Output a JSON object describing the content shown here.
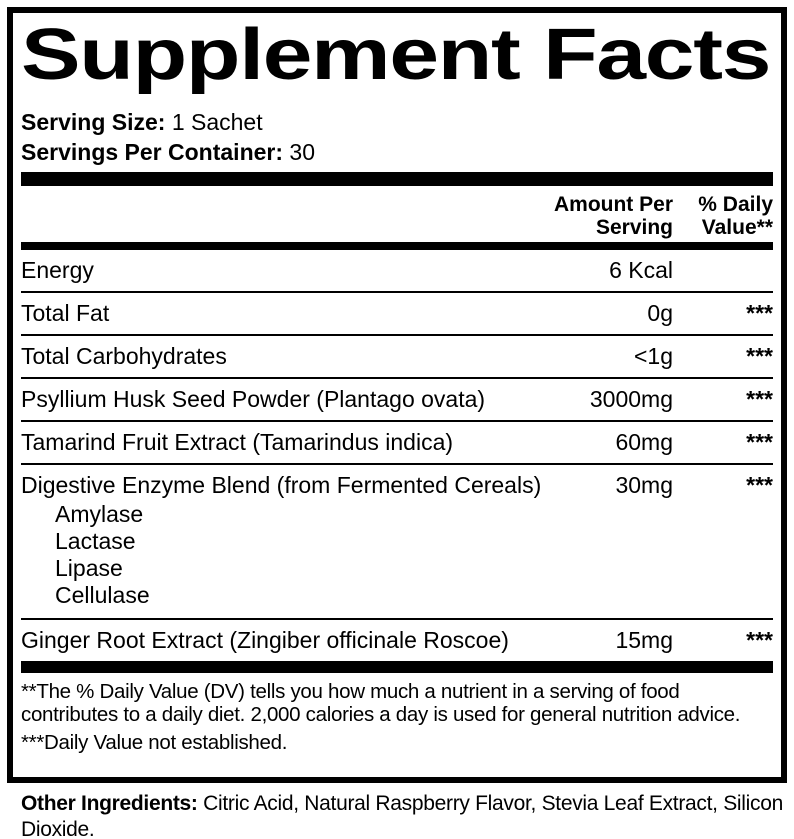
{
  "label": {
    "title": "Supplement Facts",
    "serving": {
      "size_label": "Serving Size:",
      "size_value": "1 Sachet",
      "per_container_label": "Servings Per Container:",
      "per_container_value": "30"
    },
    "columns": {
      "amount_line1": "Amount Per",
      "amount_line2": "Serving",
      "dv_line1": "% Daily",
      "dv_line2": "Value**"
    },
    "rows": [
      {
        "name": "Energy",
        "amount": "6 Kcal",
        "dv": ""
      },
      {
        "name": "Total Fat",
        "amount": "0g",
        "dv": "***"
      },
      {
        "name": "Total Carbohydrates",
        "amount": "<1g",
        "dv": "***"
      },
      {
        "name": "Psyllium Husk Seed Powder (Plantago ovata)",
        "amount": "3000mg",
        "dv": "***"
      },
      {
        "name": "Tamarind Fruit Extract (Tamarindus indica)",
        "amount": "60mg",
        "dv": "***"
      },
      {
        "name": "Digestive Enzyme Blend (from Fermented Cereals)",
        "amount": "30mg",
        "dv": "***",
        "sub_items": [
          "Amylase",
          "Lactase",
          "Lipase",
          "Cellulase"
        ]
      },
      {
        "name": "Ginger Root Extract (Zingiber officinale Roscoe)",
        "amount": "15mg",
        "dv": "***"
      }
    ],
    "footnotes": {
      "dv_note": "**The % Daily Value (DV) tells you how much a nutrient in a serving of food contributes to a daily diet. 2,000 calories a day is used for general nutrition advice.",
      "not_established": "***Daily Value not established."
    },
    "other_ingredients": {
      "label": "Other Ingredients:",
      "value": "Citric Acid, Natural Raspberry Flavor, Stevia Leaf Extract, Silicon Dioxide."
    },
    "colors": {
      "text": "#000000",
      "background": "#ffffff"
    }
  }
}
